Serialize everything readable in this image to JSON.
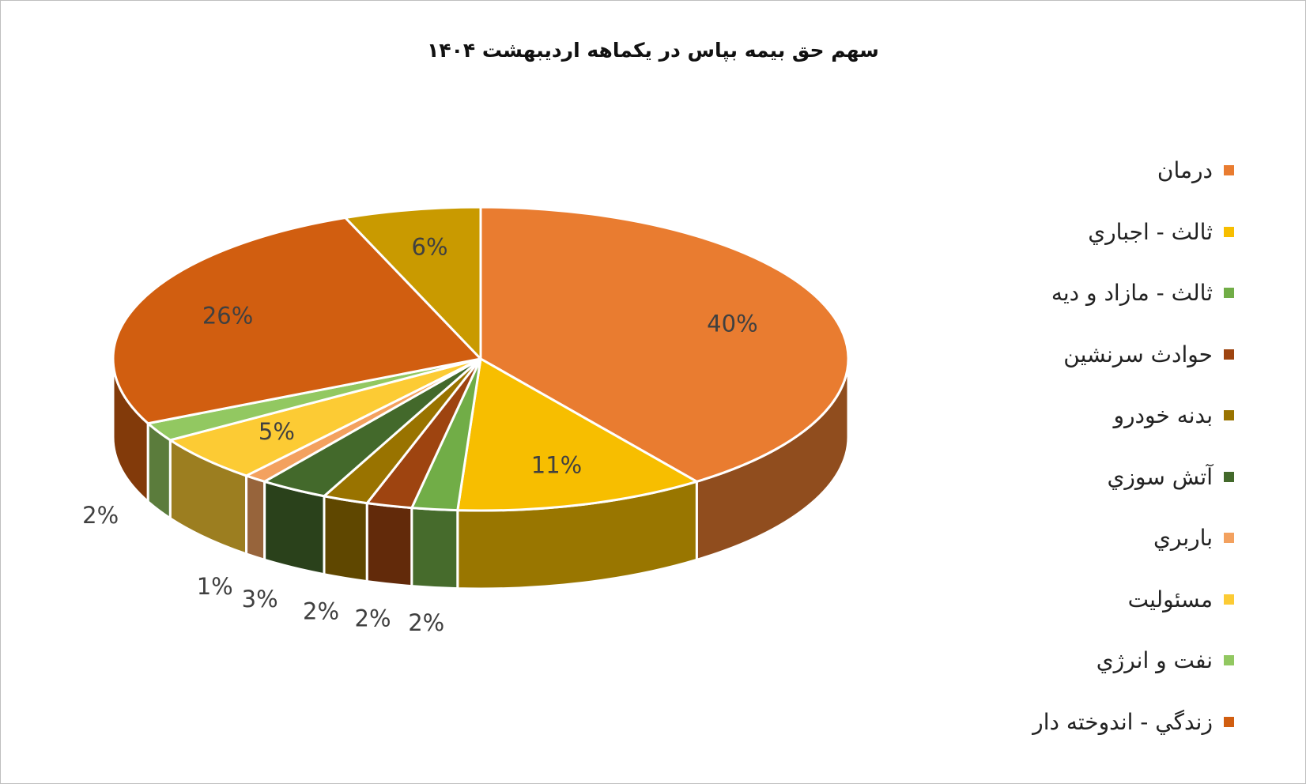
{
  "chart_data": {
    "type": "pie",
    "title": "سهم حق بیمه بپاس در یکماهه اردیبهشت ۱۴۰۴",
    "legend_position": "right",
    "slices": [
      {
        "name": "درمان",
        "value": 40,
        "label": "40%",
        "color": "#E97C30"
      },
      {
        "name": "ثالث - اجباري",
        "value": 11,
        "label": "11%",
        "color": "#F7BE00"
      },
      {
        "name": "ثالث - مازاد و ديه",
        "value": 2,
        "label": "2%",
        "color": "#71AD47"
      },
      {
        "name": "حوادث سرنشين",
        "value": 2,
        "label": "2%",
        "color": "#9E4410"
      },
      {
        "name": "بدنه خودرو",
        "value": 2,
        "label": "2%",
        "color": "#997300"
      },
      {
        "name": "آتش سوزي",
        "value": 3,
        "label": "3%",
        "color": "#43692B"
      },
      {
        "name": "باربري",
        "value": 1,
        "label": "1%",
        "color": "#F3A15F"
      },
      {
        "name": "مسئوليت",
        "value": 5,
        "label": "5%",
        "color": "#FCCB34"
      },
      {
        "name": "نفت و انرژي",
        "value": 2,
        "label": "2%",
        "color": "#92C861"
      },
      {
        "name": "زندگي - اندوخته دار",
        "value": 26,
        "label": "26%",
        "color": "#D15E10"
      },
      {
        "name": "",
        "value": 6,
        "label": "6%",
        "color": "#C99A00"
      }
    ]
  }
}
